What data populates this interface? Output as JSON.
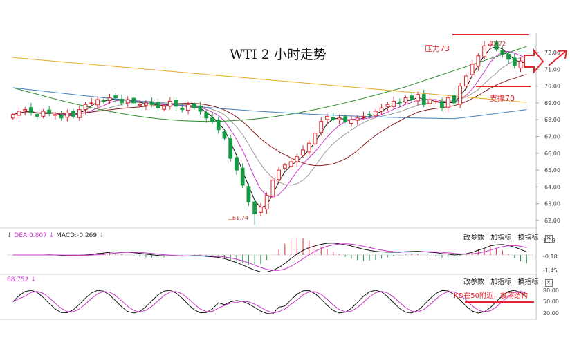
{
  "chart_data": [
    {
      "type": "candlestick",
      "title": "WTI 2 小时走势",
      "ylim": [
        61.5,
        72.8
      ],
      "yticks": [
        "72.00",
        "71.00",
        "70.00",
        "69.00",
        "68.00",
        "67.00",
        "66.00",
        "65.00",
        "64.00",
        "63.00",
        "62.00"
      ],
      "annotations": {
        "resistance": "压力73",
        "support": "支撑70",
        "low": "61.74",
        "high": "72.72"
      },
      "resistance_level": 73,
      "support_level": 70,
      "close": [
        68.3,
        68.5,
        68.6,
        68.4,
        68.2,
        68.5,
        68.4,
        68.3,
        68.1,
        68.4,
        68.2,
        68.6,
        68.9,
        69.0,
        69.2,
        69.1,
        69.3,
        69.3,
        69.0,
        69.2,
        69.0,
        68.9,
        69.0,
        68.9,
        68.7,
        68.8,
        69.1,
        68.8,
        68.6,
        68.9,
        68.7,
        68.5,
        68.1,
        67.9,
        67.4,
        66.9,
        65.7,
        65.0,
        64.1,
        63.1,
        62.4,
        62.8,
        63.5,
        64.4,
        65.0,
        65.3,
        65.5,
        65.8,
        66.2,
        66.6,
        67.2,
        67.9,
        68.2,
        68.0,
        68.1,
        67.9,
        68.0,
        68.1,
        68.2,
        68.3,
        68.5,
        68.7,
        68.9,
        69.1,
        69.0,
        69.3,
        69.2,
        69.5,
        68.9,
        69.2,
        69.1,
        68.7,
        69.3,
        69.0,
        70.0,
        70.6,
        71.3,
        71.8,
        72.4,
        72.5,
        72.2,
        71.9,
        71.6,
        71.2,
        71.5,
        71.4
      ]
    },
    {
      "type": "macd",
      "legend": [
        "DEA:0.807",
        "MACD:-0.269"
      ],
      "yticks": [
        "1.09",
        "-0.18",
        "-1.45"
      ]
    },
    {
      "type": "kd",
      "legend": [
        "68.752"
      ],
      "yticks": [
        "80.00",
        "50.00",
        "20.00"
      ],
      "annotation": "KD在50附近，震荡结构"
    }
  ],
  "controls": {
    "modify_params": "改参数",
    "add_indicator": "加指标",
    "switch_indicator": "换指标",
    "close_glyph": "×"
  },
  "colors": {
    "up": "#e0252b",
    "down": "#169a43",
    "ma_black": "#111111",
    "ma_magenta": "#cc33cc",
    "ma_gray": "#999999",
    "ma_brown": "#8b1a1a",
    "ma_green": "#2e8b2e",
    "ma_blue": "#3f7fbf",
    "ma_orange": "#e6a822"
  }
}
